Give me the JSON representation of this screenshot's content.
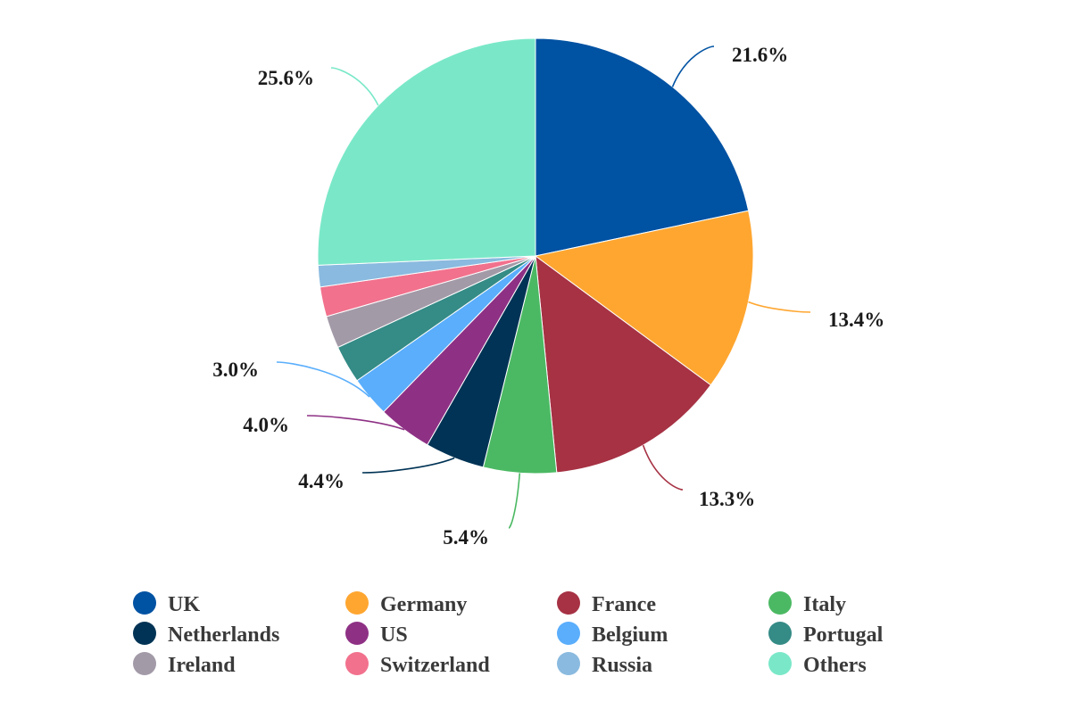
{
  "chart_data": {
    "type": "pie",
    "title": "",
    "slices": [
      {
        "name": "UK",
        "value": 21.6,
        "label": "21.6%",
        "color": "#0052a3"
      },
      {
        "name": "Germany",
        "value": 13.4,
        "label": "13.4%",
        "color": "#ffa630"
      },
      {
        "name": "France",
        "value": 13.3,
        "label": "13.3%",
        "color": "#a63244"
      },
      {
        "name": "Italy",
        "value": 5.4,
        "label": "5.4%",
        "color": "#4bb963"
      },
      {
        "name": "Netherlands",
        "value": 4.4,
        "label": "4.4%",
        "color": "#003355"
      },
      {
        "name": "US",
        "value": 4.0,
        "label": "4.0%",
        "color": "#8e3185"
      },
      {
        "name": "Belgium",
        "value": 3.0,
        "label": "3.0%",
        "color": "#5aaefc"
      },
      {
        "name": "Portugal",
        "value": 2.8,
        "label": "",
        "color": "#358b86"
      },
      {
        "name": "Ireland",
        "value": 2.4,
        "label": "",
        "color": "#a39aa8"
      },
      {
        "name": "Switzerland",
        "value": 2.2,
        "label": "",
        "color": "#f2718d"
      },
      {
        "name": "Russia",
        "value": 1.6,
        "label": "",
        "color": "#8abadf"
      },
      {
        "name": "Others",
        "value": 25.6,
        "label": "25.6%",
        "color": "#7ae8c8"
      }
    ],
    "legend_position": "bottom",
    "legend_columns": 4,
    "start_angle": "12 o'clock",
    "direction": "clockwise"
  }
}
